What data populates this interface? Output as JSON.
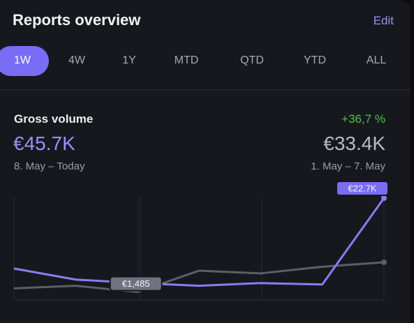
{
  "header": {
    "title": "Reports overview",
    "action": "Edit"
  },
  "tabs": {
    "items": [
      "1W",
      "4W",
      "1Y",
      "MTD",
      "QTD",
      "YTD",
      "ALL"
    ],
    "active": "1W"
  },
  "summary": {
    "label": "Gross volume",
    "current_value": "€45.7K",
    "current_period": "8. May – Today",
    "change": "+36,7 %",
    "previous_value": "€33.4K",
    "previous_period": "1. May – 7. May"
  },
  "chart": {
    "type": "line",
    "categories": [
      null,
      null,
      null,
      null,
      null,
      null,
      null
    ],
    "series": [
      {
        "color": "#5c5f67",
        "values": [
          2300,
          2900,
          1485,
          6300,
          5700,
          7200,
          8200
        ],
        "value_labels": [
          null,
          null,
          "€1,485",
          null,
          null,
          null,
          null
        ]
      },
      {
        "color": "#8b7cf6",
        "values": [
          6800,
          4300,
          3500,
          2900,
          3500,
          3200,
          22700
        ],
        "value_labels": [
          null,
          null,
          null,
          null,
          null,
          null,
          "€22.7K"
        ]
      }
    ]
  }
}
